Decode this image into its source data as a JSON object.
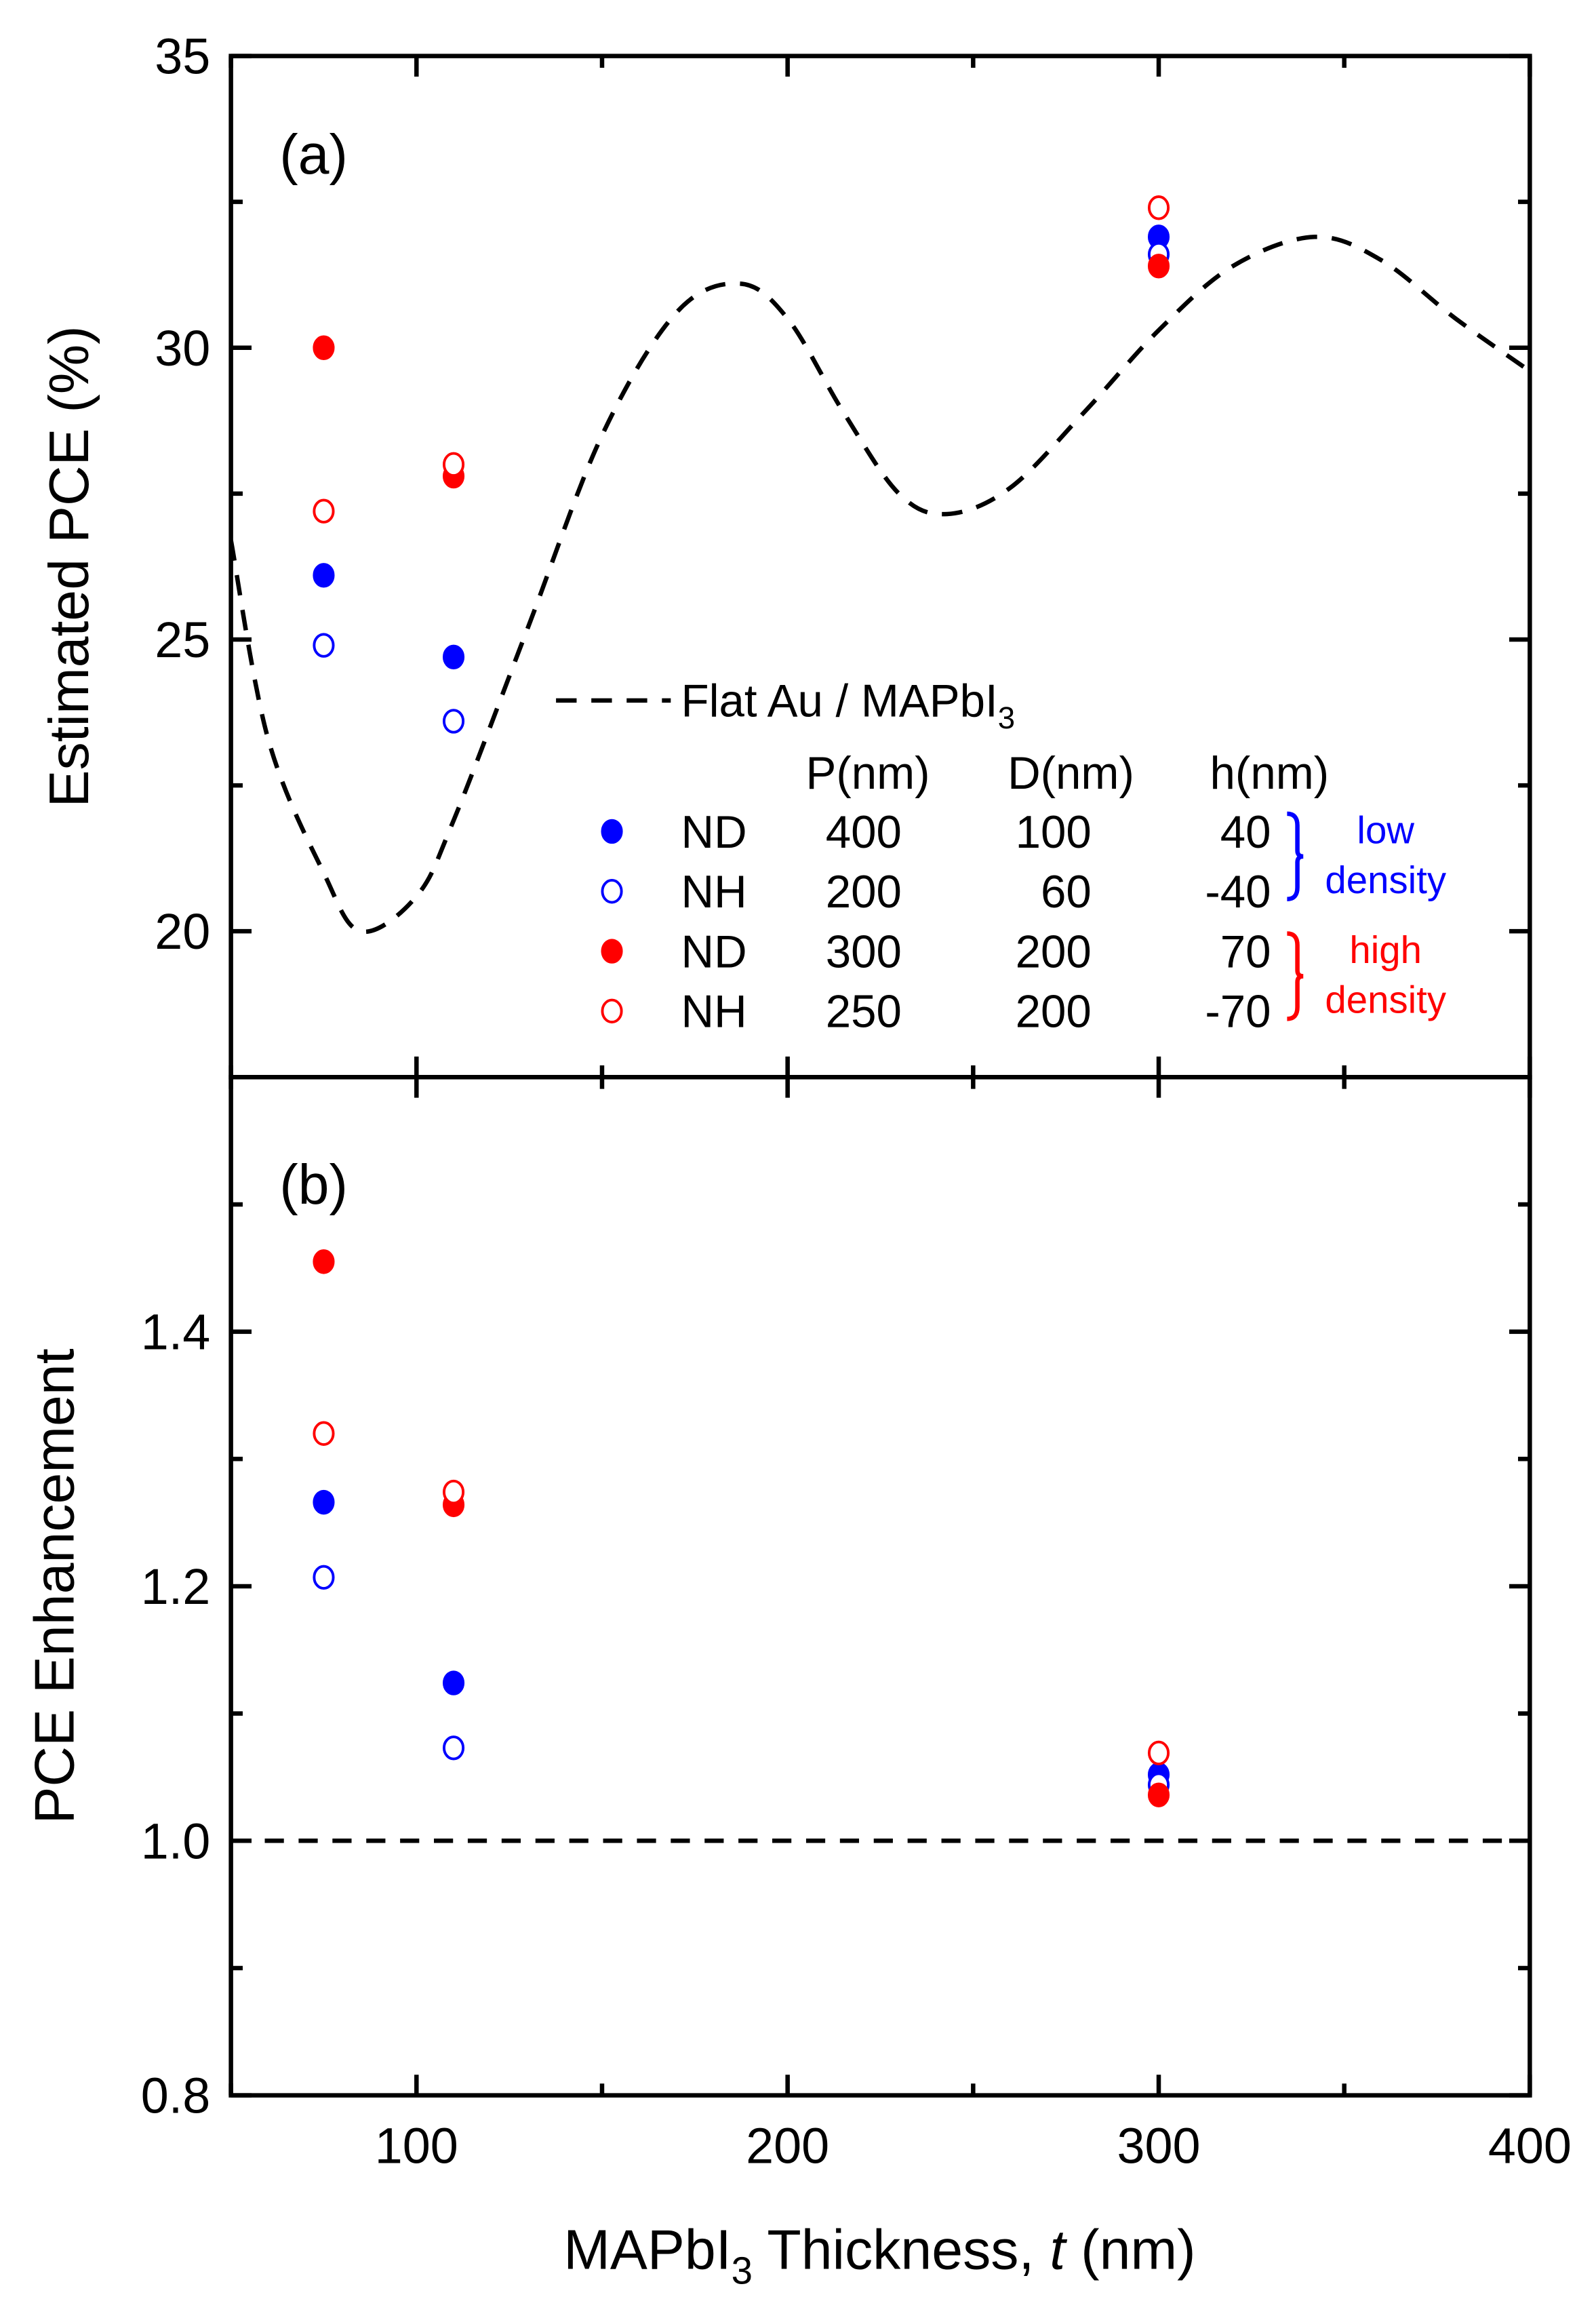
{
  "chart_data": [
    {
      "type": "scatter",
      "panel_label": "(a)",
      "ylabel": "Estimated PCE (%)",
      "xlabel": "MAPbI3 Thickness, t (nm)",
      "xlim": [
        50,
        400
      ],
      "ylim": [
        17.5,
        35
      ],
      "x_ticks": [
        100,
        200,
        300,
        400
      ],
      "x_tick_labels": [
        "100",
        "200",
        "300",
        "400"
      ],
      "y_ticks": [
        20,
        25,
        30,
        35
      ],
      "y_tick_labels": [
        "20",
        "25",
        "30",
        "35"
      ],
      "reference_curve": {
        "name": "Flat Au / MAPbI3",
        "style": "dashed",
        "x": [
          50,
          60,
          75,
          85,
          100,
          110,
          130,
          150,
          170,
          187,
          200,
          215,
          230,
          243,
          260,
          280,
          300,
          320,
          342,
          360,
          380,
          400
        ],
        "y": [
          26.7,
          23.3,
          21.0,
          20.0,
          20.6,
          21.9,
          25.2,
          28.5,
          30.6,
          31.1,
          30.5,
          28.9,
          27.5,
          27.15,
          27.6,
          28.9,
          30.3,
          31.4,
          31.9,
          31.5,
          30.5,
          29.6
        ]
      },
      "series": [
        {
          "name": "ND low",
          "color": "#0000ff",
          "filled": true,
          "x": [
            75,
            110,
            300
          ],
          "y": [
            26.1,
            24.7,
            31.9
          ]
        },
        {
          "name": "NH low",
          "color": "#0000ff",
          "filled": false,
          "x": [
            75,
            110,
            300
          ],
          "y": [
            24.9,
            23.6,
            31.6
          ]
        },
        {
          "name": "ND high",
          "color": "#ff0000",
          "filled": true,
          "x": [
            75,
            110,
            300
          ],
          "y": [
            30.0,
            27.8,
            31.4
          ]
        },
        {
          "name": "NH high",
          "color": "#ff0000",
          "filled": false,
          "x": [
            75,
            110,
            300
          ],
          "y": [
            27.2,
            28.0,
            32.4
          ]
        }
      ]
    },
    {
      "type": "scatter",
      "panel_label": "(b)",
      "ylabel": "PCE Enhancement",
      "xlabel": "MAPbI3 Thickness, t (nm)",
      "xlim": [
        50,
        400
      ],
      "ylim": [
        0.8,
        1.6
      ],
      "x_ticks": [
        100,
        200,
        300,
        400
      ],
      "x_tick_labels": [
        "100",
        "200",
        "300",
        "400"
      ],
      "y_ticks": [
        0.8,
        1.0,
        1.2,
        1.4
      ],
      "y_tick_labels": [
        "0.8",
        "1.0",
        "1.2",
        "1.4"
      ],
      "reference_line": {
        "y": 1.0,
        "style": "dashed"
      },
      "series": [
        {
          "name": "ND low",
          "color": "#0000ff",
          "filled": true,
          "x": [
            75,
            110,
            300
          ],
          "y": [
            1.266,
            1.124,
            1.052
          ]
        },
        {
          "name": "NH low",
          "color": "#0000ff",
          "filled": false,
          "x": [
            75,
            110,
            300
          ],
          "y": [
            1.207,
            1.073,
            1.044
          ]
        },
        {
          "name": "ND high",
          "color": "#ff0000",
          "filled": true,
          "x": [
            75,
            110,
            300
          ],
          "y": [
            1.455,
            1.264,
            1.036
          ]
        },
        {
          "name": "NH high",
          "color": "#ff0000",
          "filled": false,
          "x": [
            75,
            110,
            300
          ],
          "y": [
            1.32,
            1.274,
            1.069
          ]
        }
      ]
    }
  ],
  "legend": {
    "curve_label_main": "Flat Au / MAPbI",
    "curve_label_sub": "3",
    "headers": [
      "P(nm)",
      "D(nm)",
      "h(nm)"
    ],
    "rows": [
      {
        "type": "ND",
        "P": "400",
        "D": "100",
        "h": "40",
        "color": "#0000ff",
        "filled": true
      },
      {
        "type": "NH",
        "P": "200",
        "D": "60",
        "h": "-40",
        "color": "#0000ff",
        "filled": false
      },
      {
        "type": "ND",
        "P": "300",
        "D": "200",
        "h": "70",
        "color": "#ff0000",
        "filled": true
      },
      {
        "type": "NH",
        "P": "250",
        "D": "200",
        "h": "-70",
        "color": "#ff0000",
        "filled": false
      }
    ],
    "groups": [
      {
        "line1": "low",
        "line2": "density",
        "color": "#0000ff"
      },
      {
        "line1": "high",
        "line2": "density",
        "color": "#ff0000"
      }
    ]
  },
  "xaxis_title": {
    "pre": "MAPbI",
    "sub": "3",
    "mid": " Thickness, ",
    "italic": "t",
    "post": " (nm)"
  }
}
